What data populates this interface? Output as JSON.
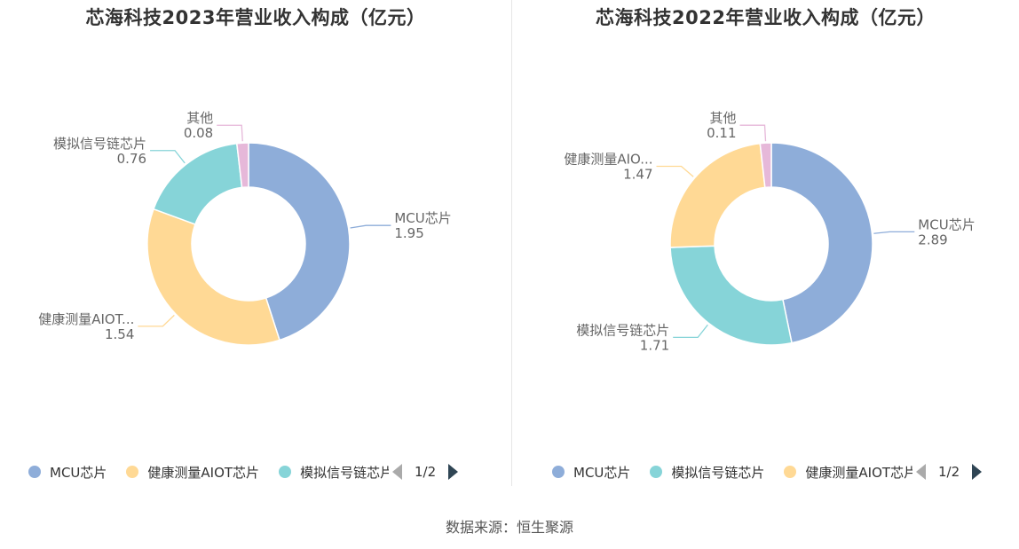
{
  "source": "数据来源：恒生聚源",
  "chart_data": [
    {
      "type": "pie",
      "title": "芯海科技2023年营业收入构成（亿元）",
      "slices": [
        {
          "name": "MCU芯片",
          "label": "MCU芯片",
          "value": 1.95,
          "color": "#8eadd9"
        },
        {
          "name": "健康测量AIOT芯片",
          "label": "健康测量AIOT...",
          "value": 1.54,
          "color": "#ffd995"
        },
        {
          "name": "模拟信号链芯片",
          "label": "模拟信号链芯片",
          "value": 0.76,
          "color": "#86d4d8"
        },
        {
          "name": "其他",
          "label": "其他",
          "value": 0.08,
          "color": "#e6b8d9"
        }
      ],
      "legend": [
        {
          "name": "MCU芯片",
          "color": "#8eadd9"
        },
        {
          "name": "健康测量AIOT芯片",
          "color": "#ffd995"
        },
        {
          "name": "模拟信号链芯片",
          "color": "#86d4d8"
        }
      ],
      "pager": "1/2"
    },
    {
      "type": "pie",
      "title": "芯海科技2022年营业收入构成（亿元）",
      "slices": [
        {
          "name": "MCU芯片",
          "label": "MCU芯片",
          "value": 2.89,
          "color": "#8eadd9"
        },
        {
          "name": "模拟信号链芯片",
          "label": "模拟信号链芯片",
          "value": 1.71,
          "color": "#86d4d8"
        },
        {
          "name": "健康测量AIOT芯片",
          "label": "健康测量AIO...",
          "value": 1.47,
          "color": "#ffd995"
        },
        {
          "name": "其他",
          "label": "其他",
          "value": 0.11,
          "color": "#e6b8d9"
        }
      ],
      "legend": [
        {
          "name": "MCU芯片",
          "color": "#8eadd9"
        },
        {
          "name": "模拟信号链芯片",
          "color": "#86d4d8"
        },
        {
          "name": "健康测量AIOT芯片",
          "color": "#ffd995"
        }
      ],
      "pager": "1/2"
    }
  ]
}
